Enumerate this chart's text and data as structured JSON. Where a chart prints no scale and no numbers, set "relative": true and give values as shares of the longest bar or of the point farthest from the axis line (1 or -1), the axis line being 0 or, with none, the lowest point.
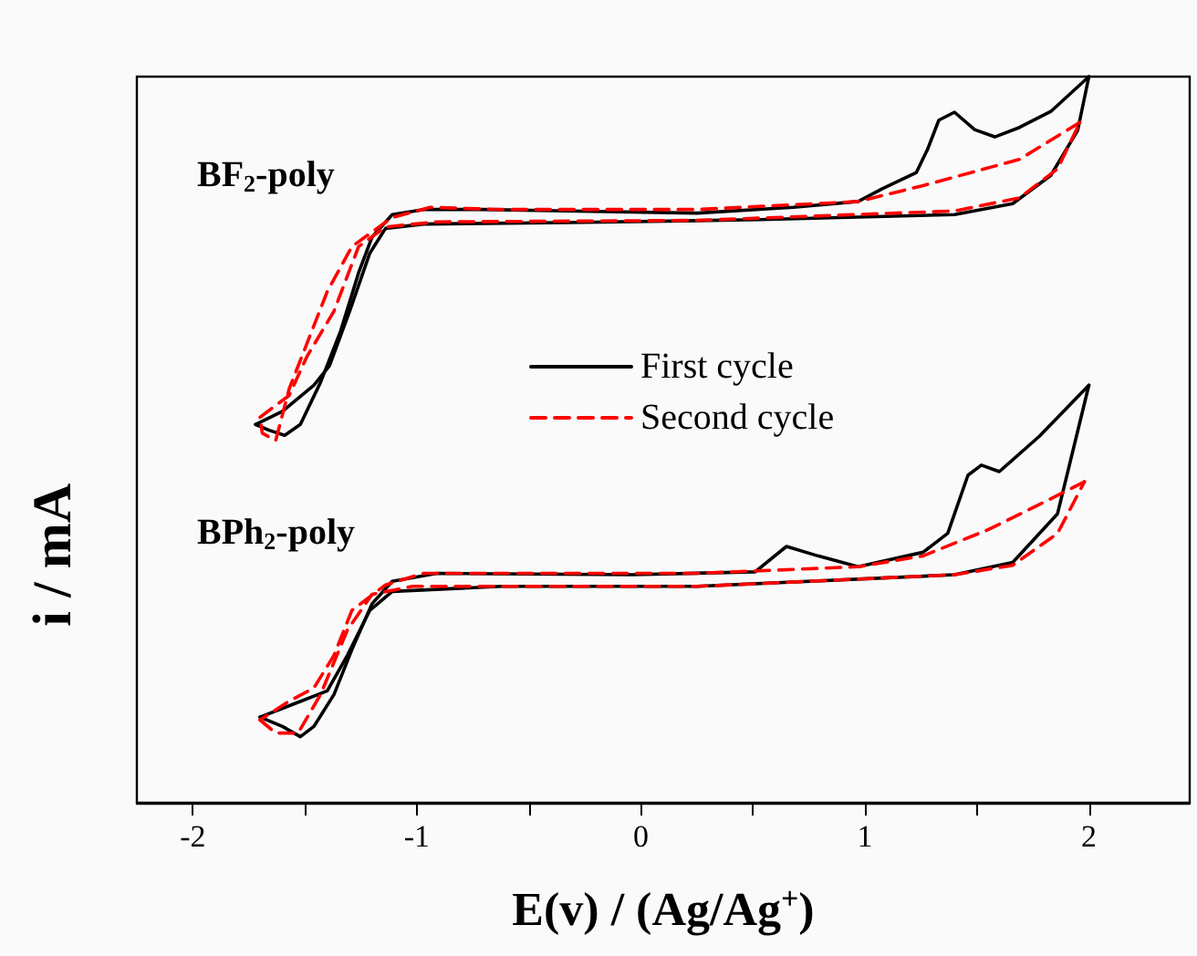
{
  "chart_data": {
    "type": "line",
    "relative": true,
    "xlabel": "E(v) / (Ag/Ag$^{+}$)",
    "ylabel": "i / mA",
    "annotations": [
      "BF$_{2}$-poly",
      "BPh$_{2}$-poly"
    ],
    "xlim": [
      -2.25,
      2.45
    ],
    "xticks": [
      -2,
      {
        "value": -1.5,
        "label": null
      },
      -1,
      {
        "value": -0.5,
        "label": null
      },
      0,
      {
        "value": 0.5,
        "label": null
      },
      1,
      {
        "value": 1.5,
        "label": null
      },
      2
    ],
    "legend": "center",
    "marker": "none",
    "grid": false,
    "tick_labels": "x",
    "series": [
      {
        "name": "First cycle",
        "color": "#000000",
        "line_style": "solid",
        "x": [
          2.0,
          1.83,
          1.69,
          1.58,
          1.49,
          1.4,
          1.33,
          1.28,
          1.23,
          1.08,
          0.97,
          0.68,
          0.25,
          -0.33,
          -0.71,
          -0.97,
          -1.11,
          -1.2,
          -1.26,
          -1.34,
          -1.43,
          -1.52,
          -1.59,
          -1.66,
          -1.72
        ],
        "values": [
          1.0,
          0.952,
          0.93,
          0.917,
          0.927,
          0.951,
          0.94,
          0.9,
          0.868,
          0.846,
          0.828,
          0.82,
          0.812,
          0.815,
          0.817,
          0.817,
          0.81,
          0.779,
          0.73,
          0.65,
          0.579,
          0.521,
          0.506,
          0.513,
          0.521
        ]
      },
      {
        "color": "#000000",
        "line_style": "solid",
        "x": [
          -1.72,
          -1.6,
          -1.46,
          -1.39,
          -1.3,
          -1.21,
          -1.14,
          -0.97,
          -0.33,
          0.53,
          1.4,
          1.66,
          1.83,
          1.95,
          2.0
        ],
        "values": [
          0.521,
          0.539,
          0.575,
          0.602,
          0.677,
          0.757,
          0.791,
          0.797,
          0.799,
          0.803,
          0.81,
          0.825,
          0.864,
          0.926,
          1.0
        ]
      },
      {
        "name": "Second cycle",
        "color": "#ff0000",
        "line_style": "dashed",
        "x": [
          1.96,
          1.69,
          1.26,
          0.97,
          0.25,
          -0.62,
          -0.94,
          -1.11,
          -1.29,
          -1.4,
          -1.49,
          -1.57,
          -1.63,
          -1.69,
          -1.7
        ],
        "values": [
          0.937,
          0.886,
          0.85,
          0.828,
          0.817,
          0.817,
          0.82,
          0.806,
          0.766,
          0.704,
          0.633,
          0.57,
          0.499,
          0.509,
          0.531
        ]
      },
      {
        "color": "#ff0000",
        "line_style": "dashed",
        "x": [
          -1.7,
          -1.57,
          -1.49,
          -1.37,
          -1.26,
          -1.14,
          -0.91,
          0.25,
          1.4,
          1.69,
          1.86,
          1.96
        ],
        "values": [
          0.531,
          0.561,
          0.615,
          0.677,
          0.766,
          0.793,
          0.8,
          0.802,
          0.815,
          0.833,
          0.873,
          0.937
        ]
      },
      {
        "color": "#000000",
        "line_style": "solid",
        "x": [
          2.0,
          1.78,
          1.6,
          1.52,
          1.46,
          1.37,
          1.26,
          0.97,
          0.79,
          0.65,
          0.51,
          -0.04,
          -0.91,
          -1.11,
          -1.2,
          -1.29,
          -1.37,
          -1.46,
          -1.52,
          -1.6,
          -1.7
        ],
        "values": [
          0.575,
          0.505,
          0.456,
          0.465,
          0.451,
          0.371,
          0.345,
          0.325,
          0.34,
          0.353,
          0.318,
          0.314,
          0.316,
          0.305,
          0.274,
          0.211,
          0.149,
          0.105,
          0.091,
          0.105,
          0.118
        ]
      },
      {
        "color": "#000000",
        "line_style": "solid",
        "x": [
          -1.7,
          -1.55,
          -1.4,
          -1.31,
          -1.21,
          -1.11,
          -0.62,
          0.25,
          1.4,
          1.66,
          1.86,
          2.0
        ],
        "values": [
          0.118,
          0.136,
          0.154,
          0.203,
          0.265,
          0.291,
          0.298,
          0.298,
          0.314,
          0.331,
          0.398,
          0.575
        ]
      },
      {
        "color": "#ff0000",
        "line_style": "dashed",
        "x": [
          1.98,
          1.78,
          1.55,
          1.26,
          0.97,
          0.25,
          -0.76,
          -0.97,
          -1.14,
          -1.29,
          -1.37,
          -1.46,
          -1.57,
          -1.7
        ],
        "values": [
          0.442,
          0.411,
          0.376,
          0.34,
          0.325,
          0.316,
          0.316,
          0.316,
          0.3,
          0.265,
          0.203,
          0.158,
          0.14,
          0.114
        ]
      },
      {
        "color": "#ff0000",
        "line_style": "dashed",
        "x": [
          -1.7,
          -1.63,
          -1.53,
          -1.43,
          -1.31,
          -1.2,
          -1.02,
          0.25,
          1.4,
          1.66,
          1.86,
          1.98
        ],
        "values": [
          0.114,
          0.096,
          0.096,
          0.149,
          0.238,
          0.287,
          0.298,
          0.298,
          0.314,
          0.327,
          0.371,
          0.442
        ]
      }
    ]
  }
}
